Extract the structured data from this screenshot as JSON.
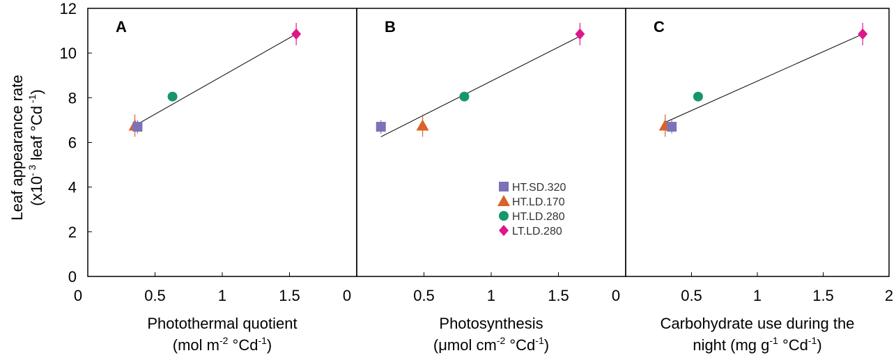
{
  "figure": {
    "y_axis": {
      "label_line1": "Leaf appearance rate",
      "label_line2_base": "(x10",
      "label_line2_sup1": "- 3",
      "label_line2_mid": " leaf °Cd",
      "label_line2_sup2": " -1",
      "label_line2_end": ")",
      "ticks": [
        "0",
        "2",
        "4",
        "6",
        "8",
        "10",
        "12"
      ]
    },
    "legend": [
      {
        "label": "HT.SD.320",
        "color": "#7b72b8",
        "marker": "square"
      },
      {
        "label": "HT.LD.170",
        "color": "#d9622b",
        "marker": "triangle"
      },
      {
        "label": "HT.LD.280",
        "color": "#17966b",
        "marker": "circle"
      },
      {
        "label": "LT.LD.280",
        "color": "#e0168b",
        "marker": "diamond"
      }
    ]
  },
  "chart_data": [
    {
      "type": "scatter",
      "panel_label": "A",
      "xlabel_line1": "Photothermal quotient",
      "xlabel_line2_parts": [
        "(mol m",
        "-2",
        " °Cd",
        "-1",
        ")"
      ],
      "xticks": [
        "0",
        "0.5",
        "1",
        "1.5"
      ],
      "xlim": [
        0,
        2
      ],
      "ylim": [
        0,
        12
      ],
      "points": [
        {
          "series": "HT.LD.170",
          "x": 0.35,
          "y": 6.75,
          "err": 0.5
        },
        {
          "series": "HT.SD.320",
          "x": 0.37,
          "y": 6.7,
          "err": 0.3
        },
        {
          "series": "HT.LD.280",
          "x": 0.63,
          "y": 8.05,
          "err": 0.1
        },
        {
          "series": "LT.LD.280",
          "x": 1.55,
          "y": 10.85,
          "err": 0.5
        }
      ],
      "fit": {
        "x": [
          0.35,
          1.55
        ],
        "y": [
          6.75,
          10.85
        ]
      }
    },
    {
      "type": "scatter",
      "panel_label": "B",
      "xlabel_line1": "Photosynthesis",
      "xlabel_line2_parts": [
        "(μmol cm",
        "-2",
        " °Cd",
        "-1",
        ")"
      ],
      "xticks": [
        "0",
        "0.5",
        "1",
        "1.5"
      ],
      "xlim": [
        0,
        2
      ],
      "ylim": [
        0,
        12
      ],
      "points": [
        {
          "series": "HT.SD.320",
          "x": 0.18,
          "y": 6.7,
          "err": 0.3
        },
        {
          "series": "HT.LD.170",
          "x": 0.49,
          "y": 6.75,
          "err": 0.5
        },
        {
          "series": "HT.LD.280",
          "x": 0.8,
          "y": 8.05,
          "err": 0.1
        },
        {
          "series": "LT.LD.280",
          "x": 1.66,
          "y": 10.85,
          "err": 0.5
        }
      ],
      "fit": {
        "x": [
          0.18,
          1.66
        ],
        "y": [
          6.25,
          10.75
        ]
      }
    },
    {
      "type": "scatter",
      "panel_label": "C",
      "xlabel_line1": "Carbohydrate use during the",
      "xlabel_line2_parts": [
        "night (mg g",
        "-1",
        " °Cd",
        "-1",
        ")"
      ],
      "xticks": [
        "0",
        "0.5",
        "1",
        "1.5",
        "2"
      ],
      "xlim": [
        0,
        2
      ],
      "ylim": [
        0,
        12
      ],
      "points": [
        {
          "series": "HT.LD.170",
          "x": 0.3,
          "y": 6.75,
          "err": 0.5
        },
        {
          "series": "HT.SD.320",
          "x": 0.35,
          "y": 6.7,
          "err": 0.3
        },
        {
          "series": "HT.LD.280",
          "x": 0.55,
          "y": 8.05,
          "err": 0.1
        },
        {
          "series": "LT.LD.280",
          "x": 1.8,
          "y": 10.85,
          "err": 0.5
        }
      ],
      "fit": {
        "x": [
          0.3,
          1.8
        ],
        "y": [
          6.9,
          10.85
        ]
      }
    }
  ]
}
